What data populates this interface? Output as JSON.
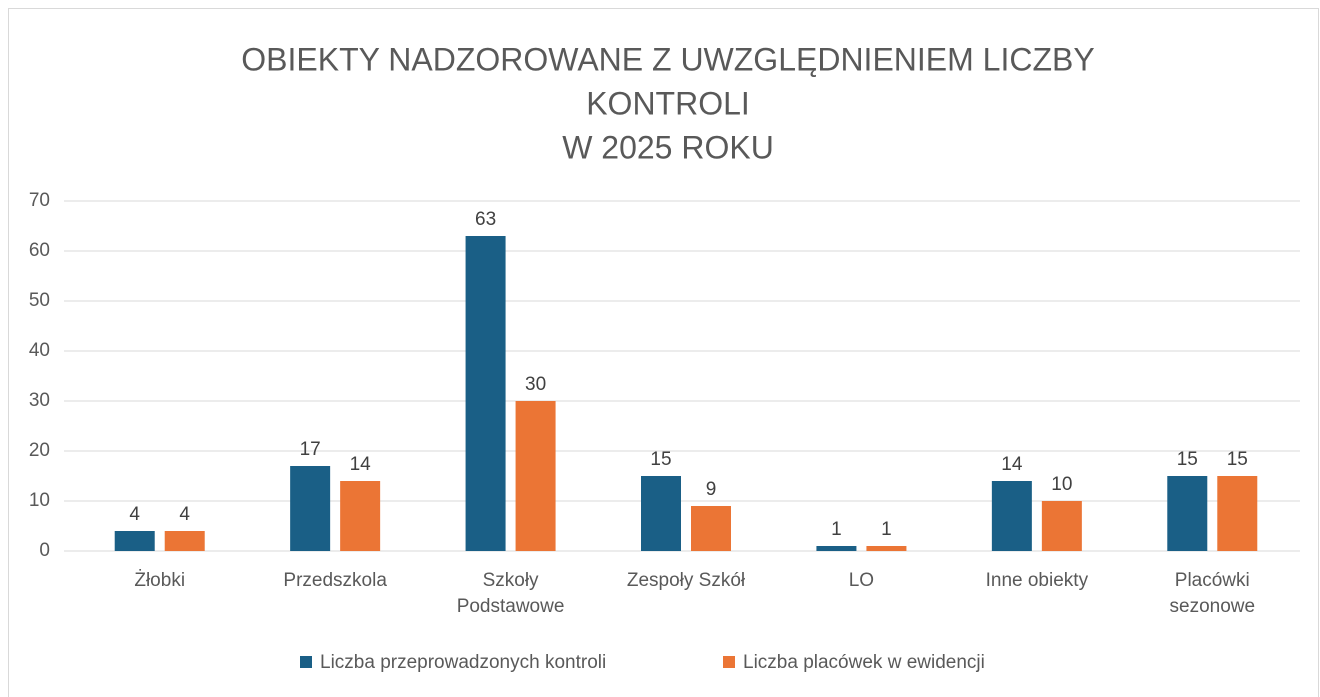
{
  "chart_data": {
    "type": "bar",
    "title": [
      "OBIEKTY NADZOROWANE Z UWZGLĘDNIENIEM LICZBY",
      "KONTROLI",
      "W 2025 ROKU"
    ],
    "categories": [
      "Żłobki",
      "Przedszkola",
      "Szkoły Podstawowe",
      "Zespoły Szkół",
      "LO",
      "Inne obiekty",
      "Placówki sezonowe"
    ],
    "series": [
      {
        "name": "Liczba przeprowadzonych kontroli",
        "color": "#1a5f86",
        "values": [
          4,
          17,
          63,
          15,
          1,
          14,
          15
        ]
      },
      {
        "name": "Liczba placówek w ewidencji",
        "color": "#eb7535",
        "values": [
          4,
          14,
          30,
          9,
          1,
          10,
          15
        ]
      }
    ],
    "ylim": [
      0,
      70
    ],
    "yticks": [
      0,
      10,
      20,
      30,
      40,
      50,
      60,
      70
    ],
    "grid": true,
    "legend": "bottom"
  }
}
